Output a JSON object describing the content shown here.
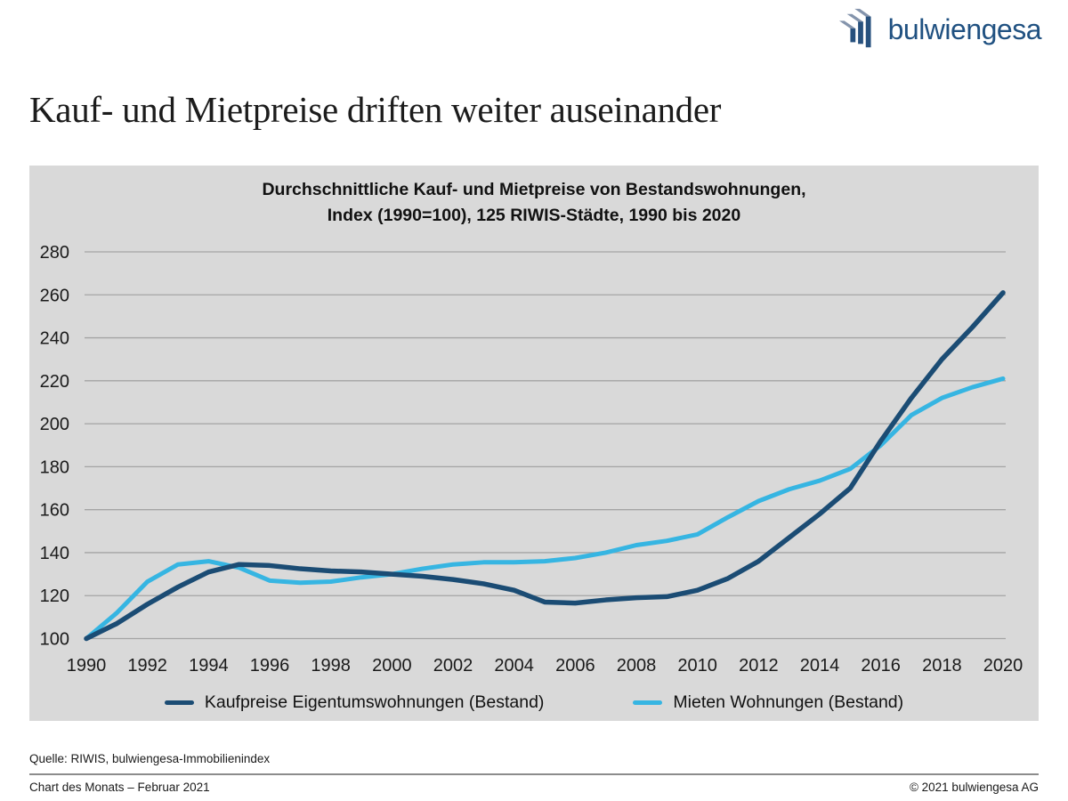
{
  "header": {
    "logo_text": "bulwiengesa",
    "title": "Kauf- und Mietpreise driften weiter auseinander"
  },
  "chart": {
    "title_line1": "Durchschnittliche Kauf- und Mietpreise von Bestandswohnungen,",
    "title_line2": "Index (1990=100), 125 RIWIS-Städte, 1990 bis 2020"
  },
  "chart_data": {
    "type": "line",
    "title": "Durchschnittliche Kauf- und Mietpreise von Bestandswohnungen, Index (1990=100), 125 RIWIS-Städte, 1990 bis 2020",
    "x": [
      1990,
      1991,
      1992,
      1993,
      1994,
      1995,
      1996,
      1997,
      1998,
      1999,
      2000,
      2001,
      2002,
      2003,
      2004,
      2005,
      2006,
      2007,
      2008,
      2009,
      2010,
      2011,
      2012,
      2013,
      2014,
      2015,
      2016,
      2017,
      2018,
      2019,
      2020
    ],
    "series": [
      {
        "name": "Kaufpreise Eigentumswohnungen (Bestand)",
        "color": "#1b4c74",
        "stroke_width": 5.5,
        "values": [
          100,
          107,
          116,
          124,
          131,
          134.5,
          134,
          132.5,
          131.5,
          131,
          130,
          129,
          127.5,
          125.5,
          122.5,
          117,
          116.5,
          118,
          119,
          119.5,
          122.5,
          128,
          136,
          147,
          158,
          170,
          192,
          212,
          230,
          245,
          261
        ]
      },
      {
        "name": "Mieten Wohnungen (Bestand)",
        "color": "#36b5e2",
        "stroke_width": 5,
        "values": [
          100,
          112,
          126.5,
          134.5,
          136,
          133,
          127,
          126,
          126.5,
          128.5,
          130,
          132.5,
          134.5,
          135.5,
          135.5,
          136,
          137.5,
          140,
          143.5,
          145.5,
          148.5,
          156.5,
          164,
          169.5,
          173.5,
          179,
          190,
          204,
          212,
          217,
          221
        ]
      }
    ],
    "xticks": [
      1990,
      1992,
      1994,
      1996,
      1998,
      2000,
      2002,
      2004,
      2006,
      2008,
      2010,
      2012,
      2014,
      2016,
      2018,
      2020
    ],
    "yticks": [
      100,
      120,
      140,
      160,
      180,
      200,
      220,
      240,
      260,
      280
    ],
    "xlim": [
      1990,
      2020
    ],
    "ylim": [
      100,
      280
    ],
    "grid": "horizontal",
    "legend_position": "bottom"
  },
  "colors": {
    "panel_bg": "#d9d9d9",
    "gridline": "#a4a4a4",
    "tick_label": "#1a1a1a"
  },
  "footer": {
    "source": "Quelle: RIWIS, bulwiengesa-Immobilienindex",
    "left": "Chart des Monats – Februar 2021",
    "right": "© 2021 bulwiengesa AG"
  }
}
